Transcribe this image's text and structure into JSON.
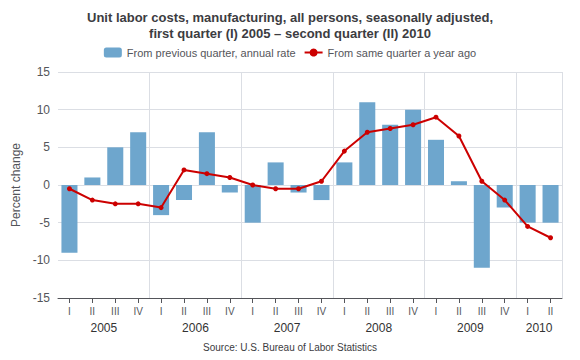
{
  "chart_data": {
    "type": "bar",
    "title": "Unit labor costs, manufacturing, all persons, seasonally adjusted,\nfirst quarter (I) 2005 – second quarter (II) 2010",
    "source": "Source: U.S. Bureau of Labor Statistics",
    "categories": [
      "I",
      "II",
      "III",
      "IV",
      "I",
      "II",
      "III",
      "IV",
      "I",
      "II",
      "III",
      "IV",
      "I",
      "II",
      "III",
      "IV",
      "I",
      "II",
      "III",
      "IV",
      "I",
      "II"
    ],
    "years": [
      "2005",
      "2006",
      "2007",
      "2008",
      "2009",
      "2010"
    ],
    "series": [
      {
        "name": "From previous quarter, annual rate",
        "type": "bar",
        "color": "#6EA6CD",
        "values": [
          -9,
          1,
          5,
          7,
          -4,
          -2,
          7,
          -1,
          -5,
          3,
          -1,
          -2,
          3,
          11,
          8,
          10,
          6,
          0.5,
          -11,
          -3,
          -5,
          -5
        ]
      },
      {
        "name": "From same quarter a year ago",
        "type": "line",
        "color": "#CC0000",
        "marker": "circle",
        "values": [
          -0.5,
          -2,
          -2.5,
          -2.5,
          -3,
          2,
          1.5,
          1,
          0,
          -0.5,
          -0.5,
          0.5,
          4.5,
          7,
          7.5,
          8,
          9,
          6.5,
          0.5,
          -2,
          -5.5,
          -7
        ]
      }
    ],
    "ylabel": "Percent change",
    "ylim": [
      -15,
      15
    ],
    "yticks": [
      -15,
      -10,
      -5,
      0,
      5,
      10,
      15
    ],
    "grid": true,
    "legend": "top"
  }
}
